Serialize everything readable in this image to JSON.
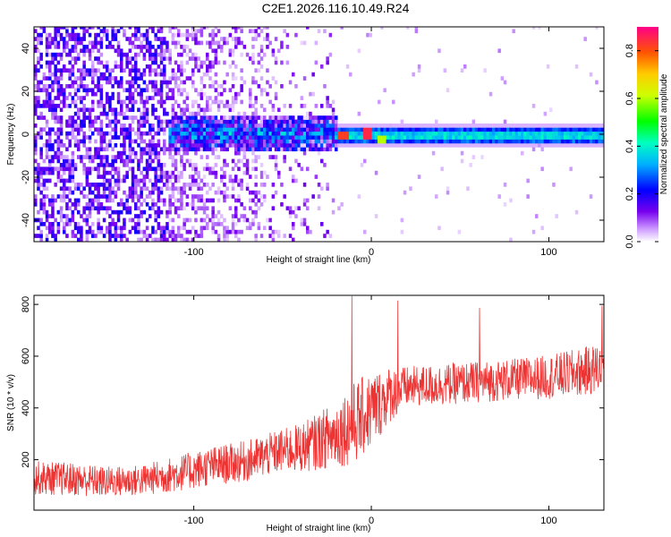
{
  "figure_title": "C2E1.2026.116.10.49.R24",
  "chart_data": [
    {
      "type": "heatmap",
      "title": "C2E1.2026.116.10.49.R24",
      "xlabel": "Height of straight line (km)",
      "ylabel": "Frequency (Hz)",
      "xlim": [
        -190,
        131
      ],
      "ylim": [
        -50,
        50
      ],
      "xticks": [
        -100,
        0,
        100
      ],
      "xtick_labels": [
        "-100",
        "0",
        "100"
      ],
      "yticks": [
        -40,
        -20,
        0,
        20,
        40
      ],
      "ytick_labels": [
        "-40",
        "-20",
        "0",
        "20",
        "40"
      ],
      "colorbar": {
        "label": "Normalized spectral amplitude",
        "range": [
          0,
          0.9
        ],
        "ticks": [
          0,
          0.2,
          0.4,
          0.6,
          0.8
        ],
        "tick_labels": [
          "0.0",
          "0.2",
          "0.4",
          "0.6",
          "0.8"
        ]
      },
      "bands": [
        {
          "x_range": [
            -190,
            -115
          ],
          "description": "broadband noise",
          "freq_spread": 50,
          "amplitude": 0.15
        },
        {
          "x_range": [
            -115,
            -20
          ],
          "description": "central band widening",
          "freq_center": 0,
          "freq_halfwidth": 8,
          "amplitude": 0.3
        },
        {
          "x_range": [
            -20,
            131
          ],
          "description": "narrow persistent echo",
          "freq_center": -1,
          "freq_halfwidth": 2.5,
          "amplitude": 0.45
        }
      ],
      "peaks": [
        {
          "x": -17,
          "freq": -1,
          "amplitude": 0.82
        },
        {
          "x": -3,
          "freq": 0,
          "amplitude": 0.85
        },
        {
          "x": 5,
          "freq": -3,
          "amplitude": 0.6
        }
      ]
    },
    {
      "type": "line",
      "xlabel": "Height of straight line (km)",
      "ylabel": "SNR (10 * v/v)",
      "xlim": [
        -190,
        131
      ],
      "ylim": [
        5,
        835
      ],
      "xticks": [
        -100,
        0,
        100
      ],
      "xtick_labels": [
        "-100",
        "0",
        "100"
      ],
      "yticks": [
        200,
        400,
        600,
        800
      ],
      "ytick_labels": [
        "200",
        "400",
        "600",
        "800"
      ],
      "series": [
        {
          "name": "SNR",
          "color": "#ee3333",
          "x": [
            -190,
            -170,
            -150,
            -130,
            -110,
            -90,
            -70,
            -50,
            -40,
            -30,
            -20,
            -10,
            0,
            10,
            20,
            40,
            60,
            80,
            100,
            120,
            131
          ],
          "y": [
            130,
            125,
            115,
            120,
            145,
            175,
            195,
            235,
            245,
            270,
            300,
            340,
            390,
            450,
            480,
            490,
            500,
            510,
            520,
            540,
            560
          ],
          "spread": [
            65,
            65,
            60,
            60,
            70,
            75,
            80,
            85,
            95,
            110,
            130,
            160,
            150,
            110,
            80,
            80,
            80,
            80,
            85,
            95,
            100
          ],
          "spikes": [
            {
              "x": -11,
              "y": 832
            },
            {
              "x": 15,
              "y": 815
            },
            {
              "x": 61,
              "y": 787
            },
            {
              "x": 130,
              "y": 795
            }
          ]
        }
      ]
    }
  ]
}
